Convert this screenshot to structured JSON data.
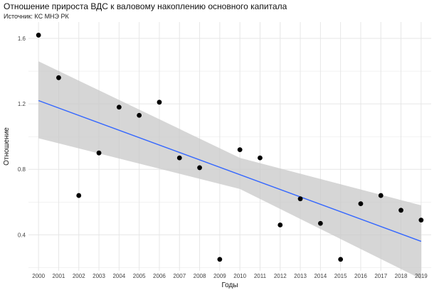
{
  "chart_data": {
    "type": "scatter",
    "title": "Отношение прироста ВДС к валовому накоплению основного капитала",
    "subtitle": "Источник: КС МНЭ РК",
    "xlabel": "Годы",
    "ylabel": "Отношение",
    "x": [
      2000,
      2001,
      2002,
      2003,
      2004,
      2005,
      2006,
      2007,
      2008,
      2009,
      2010,
      2011,
      2012,
      2013,
      2014,
      2015,
      2016,
      2017,
      2018,
      2019
    ],
    "y": [
      1.62,
      1.36,
      0.64,
      0.9,
      1.18,
      1.13,
      1.21,
      0.87,
      0.81,
      0.25,
      0.92,
      0.87,
      0.46,
      0.62,
      0.47,
      0.25,
      0.59,
      0.64,
      0.55,
      0.49
    ],
    "xlim": [
      1999.5,
      2019.5
    ],
    "ylim": [
      0.18,
      1.7
    ],
    "y_ticks": [
      0.4,
      0.8,
      1.2,
      1.6
    ],
    "y_tick_labels": [
      "0.4",
      "0.8",
      "1.2",
      "1.6"
    ],
    "x_tick_labels": [
      "2000",
      "2001",
      "2002",
      "2003",
      "2004",
      "2005",
      "2006",
      "2007",
      "2008",
      "2009",
      "2010",
      "2011",
      "2012",
      "2013",
      "2014",
      "2015",
      "2016",
      "2017",
      "2018",
      "2019"
    ],
    "trend": {
      "type": "linear",
      "start": [
        2000,
        1.22
      ],
      "end": [
        2019,
        0.36
      ],
      "confidence_band": {
        "upper": [
          [
            2000,
            1.46
          ],
          [
            2010,
            0.87
          ],
          [
            2019,
            0.58
          ]
        ],
        "lower": [
          [
            2000,
            0.99
          ],
          [
            2010,
            0.68
          ],
          [
            2019,
            0.13
          ]
        ]
      }
    },
    "grid": true,
    "legend": "none",
    "colors": {
      "points": "#000000",
      "trend_line": "#3366ff",
      "band": "#c8c8c8",
      "grid": "#e6e6e6"
    }
  }
}
